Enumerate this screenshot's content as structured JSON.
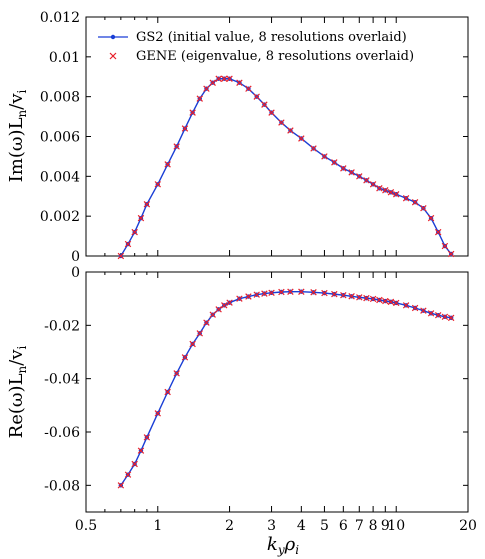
{
  "chart_data": [
    {
      "type": "line",
      "panel": "top",
      "ylabel": "Im(ω)L",
      "ylabel_sub1": "n",
      "ylabel_mid": "/v",
      "ylabel_sub2": "i",
      "xscale": "log",
      "xlim": [
        0.5,
        20
      ],
      "ylim": [
        0,
        0.012
      ],
      "yticks": [
        "0",
        "0.002",
        "0.004",
        "0.006",
        "0.008",
        "0.01",
        "0.012"
      ],
      "ytick_values": [
        0,
        0.002,
        0.004,
        0.006,
        0.008,
        0.01,
        0.012
      ],
      "x": [
        0.7,
        0.75,
        0.8,
        0.85,
        0.9,
        1.0,
        1.1,
        1.2,
        1.3,
        1.4,
        1.5,
        1.6,
        1.7,
        1.8,
        1.9,
        2.0,
        2.2,
        2.4,
        2.6,
        2.8,
        3.0,
        3.3,
        3.6,
        4.0,
        4.5,
        5.0,
        5.5,
        6.0,
        6.5,
        7.0,
        7.5,
        8.0,
        8.5,
        9.0,
        9.5,
        10.0,
        11.0,
        12.0,
        13.0,
        14.0,
        15.0,
        16.0,
        17.0
      ],
      "series": [
        {
          "name": "GS2 (initial value, 8 resolutions overlaid)",
          "color": "#1a3fd6",
          "style": "line-dot",
          "values": [
            0.0,
            0.0006,
            0.0012,
            0.0019,
            0.0026,
            0.0036,
            0.0046,
            0.0055,
            0.0064,
            0.0072,
            0.0079,
            0.0084,
            0.0087,
            0.0089,
            0.0089,
            0.0089,
            0.0087,
            0.0084,
            0.008,
            0.0076,
            0.0072,
            0.0067,
            0.0063,
            0.0059,
            0.0054,
            0.005,
            0.0047,
            0.0044,
            0.0042,
            0.004,
            0.0038,
            0.0036,
            0.0034,
            0.0033,
            0.0032,
            0.0031,
            0.0029,
            0.0027,
            0.0024,
            0.0019,
            0.0012,
            0.0005,
            0.0001
          ]
        },
        {
          "name": "GENE (eigenvalue, 8 resolutions overlaid)",
          "color": "#e8202a",
          "style": "x-marker",
          "values": [
            0.0,
            0.0006,
            0.0012,
            0.0019,
            0.0026,
            0.0036,
            0.0046,
            0.0055,
            0.0064,
            0.0072,
            0.0079,
            0.0084,
            0.0087,
            0.0089,
            0.0089,
            0.0089,
            0.0087,
            0.0084,
            0.008,
            0.0076,
            0.0072,
            0.0067,
            0.0063,
            0.0059,
            0.0054,
            0.005,
            0.0047,
            0.0044,
            0.0042,
            0.004,
            0.0038,
            0.0036,
            0.0034,
            0.0033,
            0.0032,
            0.0031,
            0.0029,
            0.0027,
            0.0024,
            0.0019,
            0.0012,
            0.0005,
            0.0001
          ]
        }
      ],
      "legend": "top-right",
      "grid": false
    },
    {
      "type": "line",
      "panel": "bottom",
      "ylabel": "Re(ω)L",
      "ylabel_sub1": "n",
      "ylabel_mid": "/v",
      "ylabel_sub2": "i",
      "xlabel": "k",
      "xlabel_sub1": "y",
      "xlabel_mid": "ρ",
      "xlabel_sub2": "i",
      "xscale": "log",
      "xlim": [
        0.5,
        20
      ],
      "ylim": [
        -0.09,
        0
      ],
      "yticks": [
        "-0.08",
        "-0.06",
        "-0.04",
        "-0.02",
        "0"
      ],
      "ytick_values": [
        -0.08,
        -0.06,
        -0.04,
        -0.02,
        0
      ],
      "xticks": [
        "0.5",
        "1",
        "2",
        "3",
        "4",
        "5",
        "6",
        "7",
        "8",
        "9",
        "10",
        "20"
      ],
      "xtick_values": [
        0.5,
        1,
        2,
        3,
        4,
        5,
        6,
        7,
        8,
        9,
        10,
        20
      ],
      "x": [
        0.7,
        0.75,
        0.8,
        0.85,
        0.9,
        1.0,
        1.1,
        1.2,
        1.3,
        1.4,
        1.5,
        1.6,
        1.7,
        1.8,
        1.9,
        2.0,
        2.2,
        2.4,
        2.6,
        2.8,
        3.0,
        3.3,
        3.6,
        4.0,
        4.5,
        5.0,
        5.5,
        6.0,
        6.5,
        7.0,
        7.5,
        8.0,
        8.5,
        9.0,
        9.5,
        10.0,
        11.0,
        12.0,
        13.0,
        14.0,
        15.0,
        16.0,
        17.0
      ],
      "series": [
        {
          "name": "GS2 (initial value, 8 resolutions overlaid)",
          "color": "#1a3fd6",
          "style": "line-dot",
          "values": [
            -0.08,
            -0.076,
            -0.072,
            -0.067,
            -0.062,
            -0.053,
            -0.045,
            -0.038,
            -0.032,
            -0.027,
            -0.023,
            -0.019,
            -0.016,
            -0.014,
            -0.0125,
            -0.0115,
            -0.01,
            -0.0092,
            -0.0085,
            -0.0081,
            -0.0078,
            -0.0075,
            -0.0074,
            -0.0074,
            -0.0076,
            -0.0079,
            -0.0083,
            -0.0087,
            -0.0091,
            -0.0095,
            -0.0098,
            -0.0101,
            -0.0105,
            -0.0109,
            -0.0112,
            -0.0116,
            -0.0125,
            -0.0135,
            -0.0145,
            -0.0155,
            -0.0162,
            -0.0168,
            -0.0172
          ]
        },
        {
          "name": "GENE (eigenvalue, 8 resolutions overlaid)",
          "color": "#e8202a",
          "style": "x-marker",
          "values": [
            -0.08,
            -0.076,
            -0.072,
            -0.067,
            -0.062,
            -0.053,
            -0.045,
            -0.038,
            -0.032,
            -0.027,
            -0.023,
            -0.019,
            -0.016,
            -0.014,
            -0.0125,
            -0.0115,
            -0.01,
            -0.0092,
            -0.0085,
            -0.0081,
            -0.0078,
            -0.0075,
            -0.0074,
            -0.0074,
            -0.0076,
            -0.0079,
            -0.0083,
            -0.0087,
            -0.0091,
            -0.0095,
            -0.0098,
            -0.0101,
            -0.0105,
            -0.0109,
            -0.0112,
            -0.0116,
            -0.0125,
            -0.0135,
            -0.0145,
            -0.0155,
            -0.0162,
            -0.0168,
            -0.0172
          ]
        }
      ],
      "grid": false
    }
  ]
}
